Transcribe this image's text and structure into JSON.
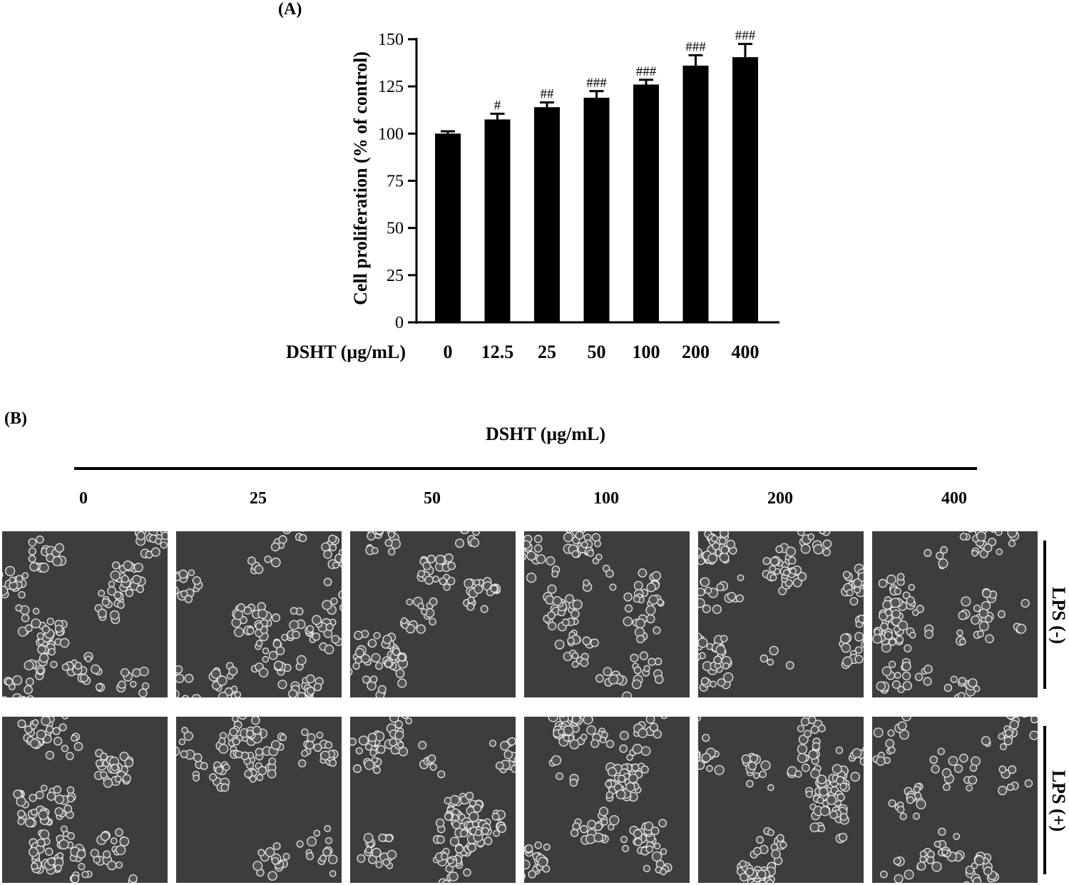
{
  "panel_a_label": "(A)",
  "panel_b_label": "(B)",
  "chart_data": {
    "type": "bar",
    "title": "",
    "xlabel": "DSHT (μg/mL)",
    "ylabel": "Cell proliferation (% of control)",
    "ylim": [
      0,
      150
    ],
    "yticks": [
      0,
      25,
      50,
      75,
      100,
      125,
      150
    ],
    "categories": [
      "0",
      "12.5",
      "25",
      "50",
      "100",
      "200",
      "400"
    ],
    "values": [
      100,
      107.5,
      114,
      119,
      126,
      136,
      140.5
    ],
    "errors": [
      1.2,
      3,
      2.5,
      3.5,
      2.5,
      5.5,
      7
    ],
    "annotations": [
      "",
      "#",
      "##",
      "###",
      "###",
      "###",
      "###"
    ],
    "bar_color": "#000000",
    "grid": false,
    "legend": "none"
  },
  "panel_b": {
    "title": "DSHT (μg/mL)",
    "columns": [
      "0",
      "25",
      "50",
      "100",
      "200",
      "400"
    ],
    "rows": [
      "LPS (-)",
      "LPS (+)"
    ]
  }
}
